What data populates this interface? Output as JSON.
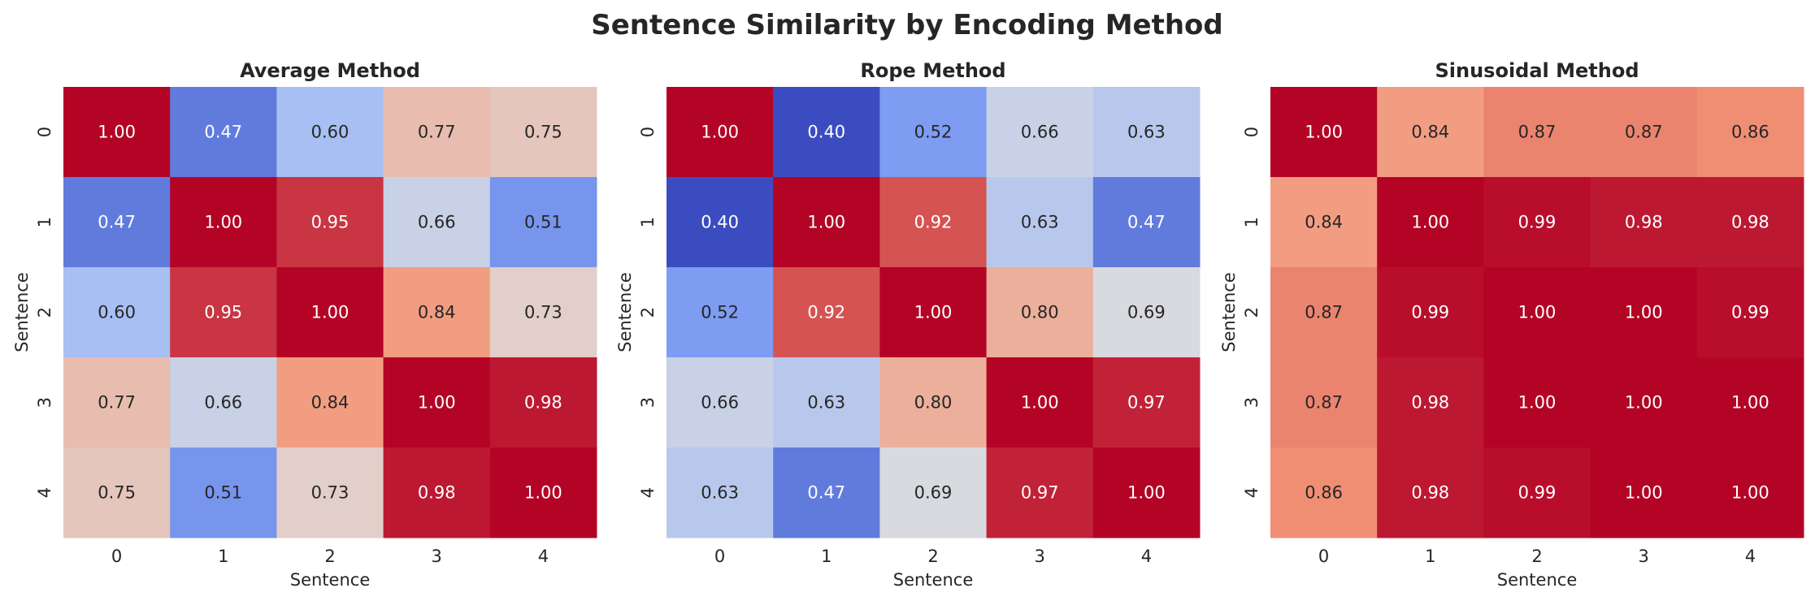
{
  "suptitle": "Sentence Similarity by Encoding Method",
  "chart_data": [
    {
      "type": "heatmap",
      "title": "Average Method",
      "xlabel": "Sentence",
      "ylabel": "Sentence",
      "x_ticks": [
        "0",
        "1",
        "2",
        "3",
        "4"
      ],
      "y_ticks": [
        "0",
        "1",
        "2",
        "3",
        "4"
      ],
      "colormap": "coolwarm",
      "value_range": [
        0.4,
        1.0
      ],
      "values": [
        [
          1.0,
          0.47,
          0.6,
          0.77,
          0.75
        ],
        [
          0.47,
          1.0,
          0.95,
          0.66,
          0.51
        ],
        [
          0.6,
          0.95,
          1.0,
          0.84,
          0.73
        ],
        [
          0.77,
          0.66,
          0.84,
          1.0,
          0.98
        ],
        [
          0.75,
          0.51,
          0.73,
          0.98,
          1.0
        ]
      ],
      "labels": [
        [
          "1.00",
          "0.47",
          "0.60",
          "0.77",
          "0.75"
        ],
        [
          "0.47",
          "1.00",
          "0.95",
          "0.66",
          "0.51"
        ],
        [
          "0.60",
          "0.95",
          "1.00",
          "0.84",
          "0.73"
        ],
        [
          "0.77",
          "0.66",
          "0.84",
          "1.00",
          "0.98"
        ],
        [
          "0.75",
          "0.51",
          "0.73",
          "0.98",
          "1.00"
        ]
      ]
    },
    {
      "type": "heatmap",
      "title": "Rope Method",
      "xlabel": "Sentence",
      "ylabel": "Sentence",
      "x_ticks": [
        "0",
        "1",
        "2",
        "3",
        "4"
      ],
      "y_ticks": [
        "0",
        "1",
        "2",
        "3",
        "4"
      ],
      "colormap": "coolwarm",
      "value_range": [
        0.4,
        1.0
      ],
      "values": [
        [
          1.0,
          0.4,
          0.52,
          0.66,
          0.63
        ],
        [
          0.4,
          1.0,
          0.92,
          0.63,
          0.47
        ],
        [
          0.52,
          0.92,
          1.0,
          0.8,
          0.69
        ],
        [
          0.66,
          0.63,
          0.8,
          1.0,
          0.97
        ],
        [
          0.63,
          0.47,
          0.69,
          0.97,
          1.0
        ]
      ],
      "labels": [
        [
          "1.00",
          "0.40",
          "0.52",
          "0.66",
          "0.63"
        ],
        [
          "0.40",
          "1.00",
          "0.92",
          "0.63",
          "0.47"
        ],
        [
          "0.52",
          "0.92",
          "1.00",
          "0.80",
          "0.69"
        ],
        [
          "0.66",
          "0.63",
          "0.80",
          "1.00",
          "0.97"
        ],
        [
          "0.63",
          "0.47",
          "0.69",
          "0.97",
          "1.00"
        ]
      ]
    },
    {
      "type": "heatmap",
      "title": "Sinusoidal Method",
      "xlabel": "Sentence",
      "ylabel": "Sentence",
      "x_ticks": [
        "0",
        "1",
        "2",
        "3",
        "4"
      ],
      "y_ticks": [
        "0",
        "1",
        "2",
        "3",
        "4"
      ],
      "colormap": "coolwarm",
      "value_range": [
        0.4,
        1.0
      ],
      "values": [
        [
          1.0,
          0.84,
          0.87,
          0.87,
          0.86
        ],
        [
          0.84,
          1.0,
          0.99,
          0.98,
          0.98
        ],
        [
          0.87,
          0.99,
          1.0,
          1.0,
          0.99
        ],
        [
          0.87,
          0.98,
          1.0,
          1.0,
          1.0
        ],
        [
          0.86,
          0.98,
          0.99,
          1.0,
          1.0
        ]
      ],
      "labels": [
        [
          "1.00",
          "0.84",
          "0.87",
          "0.87",
          "0.86"
        ],
        [
          "0.84",
          "1.00",
          "0.99",
          "0.98",
          "0.98"
        ],
        [
          "0.87",
          "0.99",
          "1.00",
          "1.00",
          "0.99"
        ],
        [
          "0.87",
          "0.98",
          "1.00",
          "1.00",
          "1.00"
        ],
        [
          "0.86",
          "0.98",
          "0.99",
          "1.00",
          "1.00"
        ]
      ]
    }
  ]
}
